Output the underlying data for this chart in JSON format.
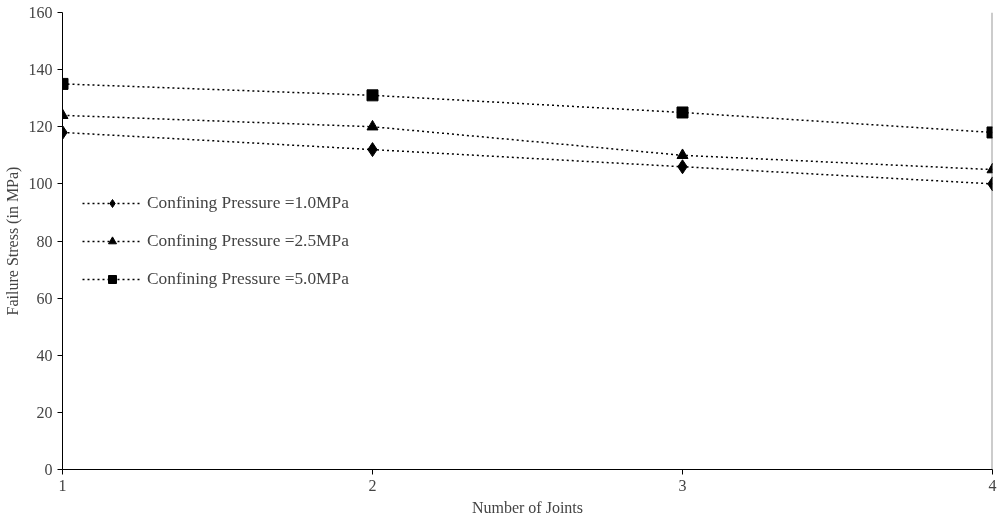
{
  "chart_data": {
    "type": "line",
    "xlabel": "Number of Joints",
    "ylabel": "Failure Stress (in MPa)",
    "x": [
      1,
      2,
      3,
      4
    ],
    "xlim": [
      1,
      4
    ],
    "xticks": [
      1,
      2,
      3,
      4
    ],
    "ylim": [
      0,
      160
    ],
    "yticks": [
      0,
      20,
      40,
      60,
      80,
      100,
      120,
      140,
      160
    ],
    "grid": false,
    "legend": "left",
    "line_style": "dotted",
    "series": [
      {
        "name": "Confining Pressure =1.0MPa",
        "color": "#000000",
        "marker": "diamond",
        "values": [
          118,
          112,
          106,
          100
        ]
      },
      {
        "name": "Confining Pressure =2.5MPa",
        "color": "#000000",
        "marker": "triangle",
        "values": [
          124,
          120,
          110,
          105
        ]
      },
      {
        "name": "Confining Pressure =5.0MPa",
        "color": "#000000",
        "marker": "square",
        "values": [
          135,
          131,
          125,
          118
        ]
      }
    ]
  }
}
